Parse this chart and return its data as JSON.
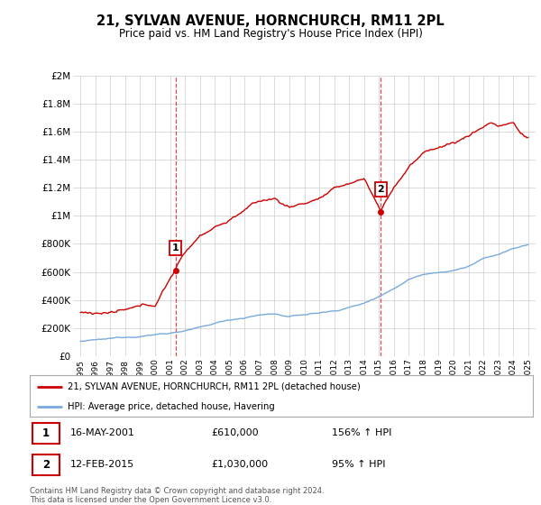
{
  "title": "21, SYLVAN AVENUE, HORNCHURCH, RM11 2PL",
  "subtitle": "Price paid vs. HM Land Registry's House Price Index (HPI)",
  "legend_label_red": "21, SYLVAN AVENUE, HORNCHURCH, RM11 2PL (detached house)",
  "legend_label_blue": "HPI: Average price, detached house, Havering",
  "transaction1_date": "16-MAY-2001",
  "transaction1_price": 610000,
  "transaction1_price_str": "£610,000",
  "transaction1_hpi": "156% ↑ HPI",
  "transaction2_date": "12-FEB-2015",
  "transaction2_price": 1030000,
  "transaction2_price_str": "£1,030,000",
  "transaction2_hpi": "95% ↑ HPI",
  "footer1": "Contains HM Land Registry data © Crown copyright and database right 2024.",
  "footer2": "This data is licensed under the Open Government Licence v3.0.",
  "ylim": [
    0,
    2000000
  ],
  "yticks": [
    0,
    200000,
    400000,
    600000,
    800000,
    1000000,
    1200000,
    1400000,
    1600000,
    1800000,
    2000000
  ],
  "ytick_labels": [
    "£0",
    "£200K",
    "£400K",
    "£600K",
    "£800K",
    "£1M",
    "£1.2M",
    "£1.4M",
    "£1.6M",
    "£1.8M",
    "£2M"
  ],
  "color_red": "#cc0000",
  "color_blue": "#7aaadd",
  "color_grid": "#cccccc",
  "background_color": "#ffffff",
  "transaction1_x": 2001.37,
  "transaction2_x": 2015.12,
  "xstart": 1995,
  "xend": 2025
}
